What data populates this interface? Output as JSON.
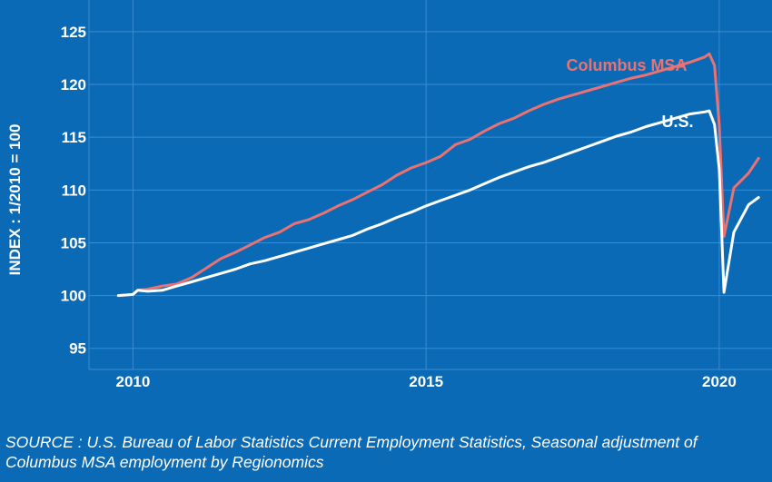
{
  "chart_data": {
    "type": "line",
    "ylabel": "INDEX : 1/2010 = 100",
    "ylim": [
      93,
      128
    ],
    "xlim": [
      2009.25,
      2020.9
    ],
    "yticks": [
      95,
      100,
      105,
      110,
      115,
      120,
      125
    ],
    "xticks": [
      {
        "value": 2010,
        "label": "2010"
      },
      {
        "value": 2015,
        "label": "2015"
      },
      {
        "value": 2020,
        "label": "2020"
      }
    ],
    "grid": true,
    "series": [
      {
        "name": "Columbus MSA",
        "color": "#ea7272",
        "x": [
          2009.75,
          2010.0,
          2010.08,
          2010.25,
          2010.5,
          2010.75,
          2011.0,
          2011.25,
          2011.5,
          2011.75,
          2012.0,
          2012.25,
          2012.5,
          2012.75,
          2013.0,
          2013.25,
          2013.5,
          2013.75,
          2014.0,
          2014.25,
          2014.5,
          2014.75,
          2015.0,
          2015.25,
          2015.5,
          2015.75,
          2016.0,
          2016.25,
          2016.5,
          2016.75,
          2017.0,
          2017.25,
          2017.5,
          2017.75,
          2018.0,
          2018.25,
          2018.5,
          2018.75,
          2019.0,
          2019.25,
          2019.5,
          2019.75,
          2019.83,
          2019.92,
          2020.0,
          2020.08,
          2020.25,
          2020.5,
          2020.67
        ],
        "values": [
          100.0,
          100.1,
          100.5,
          100.6,
          100.9,
          101.1,
          101.7,
          102.6,
          103.5,
          104.1,
          104.8,
          105.5,
          106.0,
          106.8,
          107.2,
          107.8,
          108.5,
          109.1,
          109.8,
          110.5,
          111.4,
          112.1,
          112.6,
          113.2,
          114.3,
          114.8,
          115.6,
          116.3,
          116.8,
          117.5,
          118.1,
          118.6,
          119.0,
          119.4,
          119.8,
          120.2,
          120.6,
          120.9,
          121.3,
          121.7,
          122.1,
          122.6,
          122.9,
          121.8,
          116.2,
          105.6,
          110.2,
          111.6,
          113.0
        ]
      },
      {
        "name": "U.S.",
        "color": "#ffffff",
        "x": [
          2009.75,
          2010.0,
          2010.08,
          2010.25,
          2010.5,
          2010.75,
          2011.0,
          2011.25,
          2011.5,
          2011.75,
          2012.0,
          2012.25,
          2012.5,
          2012.75,
          2013.0,
          2013.25,
          2013.5,
          2013.75,
          2014.0,
          2014.25,
          2014.5,
          2014.75,
          2015.0,
          2015.25,
          2015.5,
          2015.75,
          2016.0,
          2016.25,
          2016.5,
          2016.75,
          2017.0,
          2017.25,
          2017.5,
          2017.75,
          2018.0,
          2018.25,
          2018.5,
          2018.75,
          2019.0,
          2019.25,
          2019.5,
          2019.75,
          2019.83,
          2019.92,
          2020.0,
          2020.08,
          2020.25,
          2020.5,
          2020.67
        ],
        "values": [
          100.0,
          100.1,
          100.5,
          100.4,
          100.5,
          100.9,
          101.3,
          101.7,
          102.1,
          102.5,
          103.0,
          103.3,
          103.7,
          104.1,
          104.5,
          104.9,
          105.3,
          105.7,
          106.3,
          106.8,
          107.4,
          107.9,
          108.5,
          109.0,
          109.5,
          110.0,
          110.6,
          111.2,
          111.7,
          112.2,
          112.6,
          113.1,
          113.6,
          114.1,
          114.6,
          115.1,
          115.5,
          116.0,
          116.4,
          116.8,
          117.2,
          117.4,
          117.5,
          116.2,
          112.0,
          100.3,
          106.0,
          108.6,
          109.3
        ]
      }
    ]
  },
  "source": "SOURCE : U.S. Bureau of Labor Statistics Current Employment Statistics, Seasonal adjustment of Columbus MSA employment by Regionomics"
}
